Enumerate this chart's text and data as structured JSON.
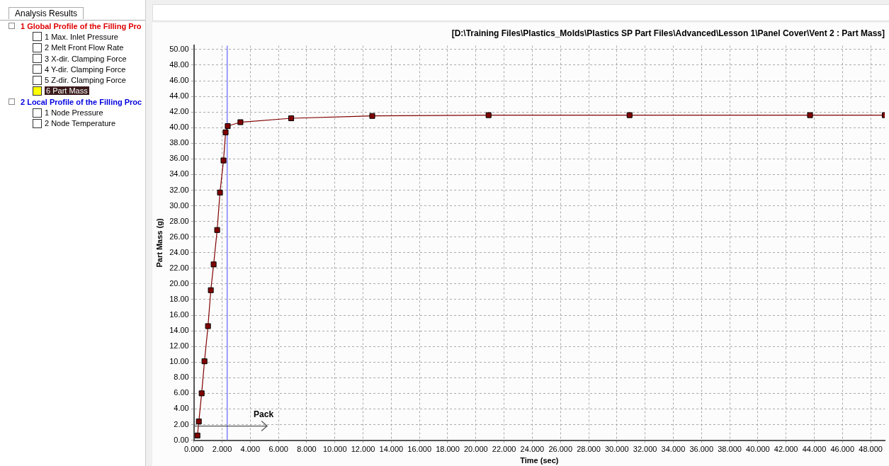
{
  "chart_data": {
    "type": "line",
    "title": "[D:\\Training Files\\Plastics_Molds\\Plastics SP Part Files\\Advanced\\Lesson 1\\Panel Cover\\Vent 2 : Part Mass]",
    "xlabel": "Time (sec)",
    "ylabel": "Part Mass (g)",
    "series": [
      {
        "color": "#800000",
        "x": [
          0.25,
          0.35,
          0.55,
          0.75,
          1.0,
          1.2,
          1.4,
          1.65,
          1.85,
          2.1,
          2.25,
          2.4,
          3.3,
          6.9,
          12.65,
          20.9,
          30.9,
          43.7,
          49
        ],
        "values": [
          0.6,
          2.4,
          6.0,
          10.1,
          14.6,
          19.2,
          22.5,
          26.9,
          31.7,
          35.8,
          39.4,
          40.2,
          40.7,
          41.2,
          41.5,
          41.6,
          41.6,
          41.6,
          41.6
        ]
      }
    ],
    "xlim": [
      0,
      49
    ],
    "ylim": [
      0,
      50.5
    ],
    "xticks": [
      {
        "value": 0,
        "label": "0.000"
      },
      {
        "value": 2,
        "label": "2.000"
      },
      {
        "value": 4,
        "label": "4.000"
      },
      {
        "value": 6,
        "label": "6.000"
      },
      {
        "value": 8,
        "label": "8.000"
      },
      {
        "value": 10,
        "label": "10.000"
      },
      {
        "value": 12,
        "label": "12.000"
      },
      {
        "value": 14,
        "label": "14.000"
      },
      {
        "value": 16,
        "label": "16.000"
      },
      {
        "value": 18,
        "label": "18.000"
      },
      {
        "value": 20,
        "label": "20.000"
      },
      {
        "value": 22,
        "label": "22.000"
      },
      {
        "value": 24,
        "label": "24.000"
      },
      {
        "value": 26,
        "label": "26.000"
      },
      {
        "value": 28,
        "label": "28.000"
      },
      {
        "value": 30,
        "label": "30.000"
      },
      {
        "value": 32,
        "label": "32.000"
      },
      {
        "value": 34,
        "label": "34.000"
      },
      {
        "value": 36,
        "label": "36.000"
      },
      {
        "value": 38,
        "label": "38.000"
      },
      {
        "value": 40,
        "label": "40.000"
      },
      {
        "value": 42,
        "label": "42.000"
      },
      {
        "value": 44,
        "label": "44.000"
      },
      {
        "value": 46,
        "label": "46.000"
      },
      {
        "value": 48,
        "label": "48.000"
      }
    ],
    "yticks": [
      {
        "value": 0,
        "label": "0.00"
      },
      {
        "value": 2,
        "label": "2.00"
      },
      {
        "value": 4,
        "label": "4.00"
      },
      {
        "value": 6,
        "label": "6.00"
      },
      {
        "value": 8,
        "label": "8.00"
      },
      {
        "value": 10,
        "label": "10.00"
      },
      {
        "value": 12,
        "label": "12.00"
      },
      {
        "value": 14,
        "label": "14.00"
      },
      {
        "value": 16,
        "label": "16.00"
      },
      {
        "value": 18,
        "label": "18.00"
      },
      {
        "value": 20,
        "label": "20.00"
      },
      {
        "value": 22,
        "label": "22.00"
      },
      {
        "value": 24,
        "label": "24.00"
      },
      {
        "value": 26,
        "label": "26.00"
      },
      {
        "value": 28,
        "label": "28.00"
      },
      {
        "value": 30,
        "label": "30.00"
      },
      {
        "value": 32,
        "label": "32.00"
      },
      {
        "value": 34,
        "label": "34.00"
      },
      {
        "value": 36,
        "label": "36.00"
      },
      {
        "value": 38,
        "label": "38.00"
      },
      {
        "value": 40,
        "label": "40.00"
      },
      {
        "value": 42,
        "label": "42.00"
      },
      {
        "value": 44,
        "label": "44.00"
      },
      {
        "value": 46,
        "label": "46.00"
      },
      {
        "value": 48,
        "label": "48.00"
      },
      {
        "value": 50,
        "label": "50.00"
      }
    ],
    "ref_lines": [
      {
        "axis": "x",
        "value": 2.36,
        "color": "#8080ff"
      }
    ],
    "annotations": [
      "Pack",
      "Analysis Results",
      "1  Global Profile of the Filling Pro",
      "1  Max. Inlet Pressure",
      "2  Melt Front Flow Rate",
      "3  X-dir. Clamping Force",
      "4  Y-dir. Clamping Force",
      "5  Z-dir. Clamping Force",
      "6  Part Mass",
      "2  Local Profile of the Filling Proc",
      "1  Node Pressure",
      "2  Node Temperature"
    ],
    "grid": true,
    "legend": false,
    "marker": "square",
    "line_style": "solid"
  }
}
